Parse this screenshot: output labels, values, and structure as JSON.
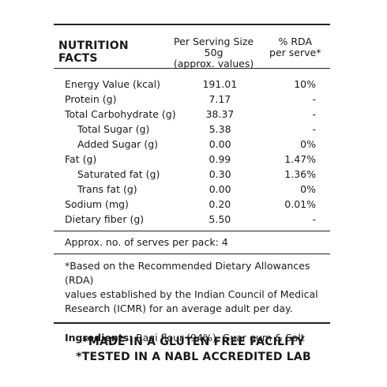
{
  "header": {
    "title": "NUTRITION FACTS",
    "per_serving_line1": "Per Serving Size 50g",
    "per_serving_line2": "(approx. values)",
    "rda_line1": "% RDA",
    "rda_line2": "per serve*"
  },
  "rows": [
    {
      "name": "Energy Value (kcal)",
      "per_serving": "191.01",
      "rda": "10%"
    },
    {
      "name": "Protein (g)",
      "per_serving": "7.17",
      "rda": "-"
    },
    {
      "name": "Total Carbohydrate (g)",
      "per_serving": "38.37",
      "rda": "-"
    },
    {
      "name": "Total Sugar (g)",
      "per_serving": "5.38",
      "rda": "-"
    },
    {
      "name": "Added Sugar (g)",
      "per_serving": "0.00",
      "rda": "0%"
    },
    {
      "name": "Fat (g)",
      "per_serving": "0.99",
      "rda": "1.47%"
    },
    {
      "name": "Saturated fat (g)",
      "per_serving": "0.30",
      "rda": "1.36%"
    },
    {
      "name": "Trans fat (g)",
      "per_serving": "0.00",
      "rda": "0%"
    },
    {
      "name": "Sodium (mg)",
      "per_serving": "0.20",
      "rda": "0.01%"
    },
    {
      "name": "Dietary fiber (g)",
      "per_serving": "5.50",
      "rda": "-"
    }
  ],
  "serves_per_pack": "Approx. no. of serves per pack: 4",
  "footnote": {
    "line1": "*Based on the Recommended Dietary Allowances (RDA)",
    "line2": "values established by the Indian Council of Medical",
    "line3": "Research (ICMR) for an average adult per day."
  },
  "ingredients": {
    "label": "Ingredients:",
    "text": "Ragi flour (94%), Guar gum & Salt"
  },
  "claims": {
    "line1": "*MADE IN A GLUTEN FREE FACILITY",
    "line2": "*TESTED IN A NABL ACCREDITED LAB"
  }
}
